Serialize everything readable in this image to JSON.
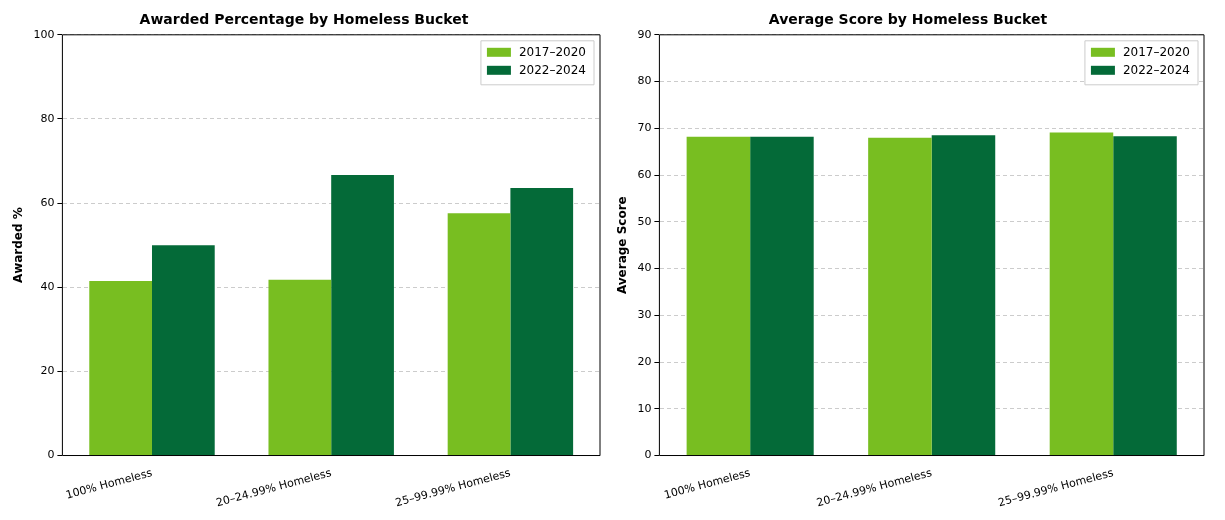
{
  "chart_data": [
    {
      "type": "bar",
      "title": "Awarded Percentage by Homeless Bucket",
      "ylabel": "Awarded %",
      "categories": [
        "100% Homeless",
        "20–24.99% Homeless",
        "25–99.99% Homeless"
      ],
      "series": [
        {
          "name": "2017–2020",
          "color": "#78be21",
          "values": [
            41.5,
            41.8,
            57.6
          ]
        },
        {
          "name": "2022–2024",
          "color": "#046a38",
          "values": [
            50.0,
            66.7,
            63.6
          ]
        }
      ],
      "ylim": [
        0,
        100
      ],
      "yticks": [
        0,
        20,
        40,
        60,
        80,
        100
      ],
      "grid": "y",
      "legend": "top right"
    },
    {
      "type": "bar",
      "title": "Average Score by Homeless Bucket",
      "ylabel": "Average Score",
      "categories": [
        "100% Homeless",
        "20–24.99% Homeless",
        "25–99.99% Homeless"
      ],
      "series": [
        {
          "name": "2017–2020",
          "color": "#78be21",
          "values": [
            68.2,
            68.0,
            69.1
          ]
        },
        {
          "name": "2022–2024",
          "color": "#046a38",
          "values": [
            68.2,
            68.5,
            68.3
          ]
        }
      ],
      "ylim": [
        0,
        90
      ],
      "yticks": [
        0,
        10,
        20,
        30,
        40,
        50,
        60,
        70,
        80,
        90
      ],
      "grid": "y",
      "legend": "top right"
    }
  ]
}
